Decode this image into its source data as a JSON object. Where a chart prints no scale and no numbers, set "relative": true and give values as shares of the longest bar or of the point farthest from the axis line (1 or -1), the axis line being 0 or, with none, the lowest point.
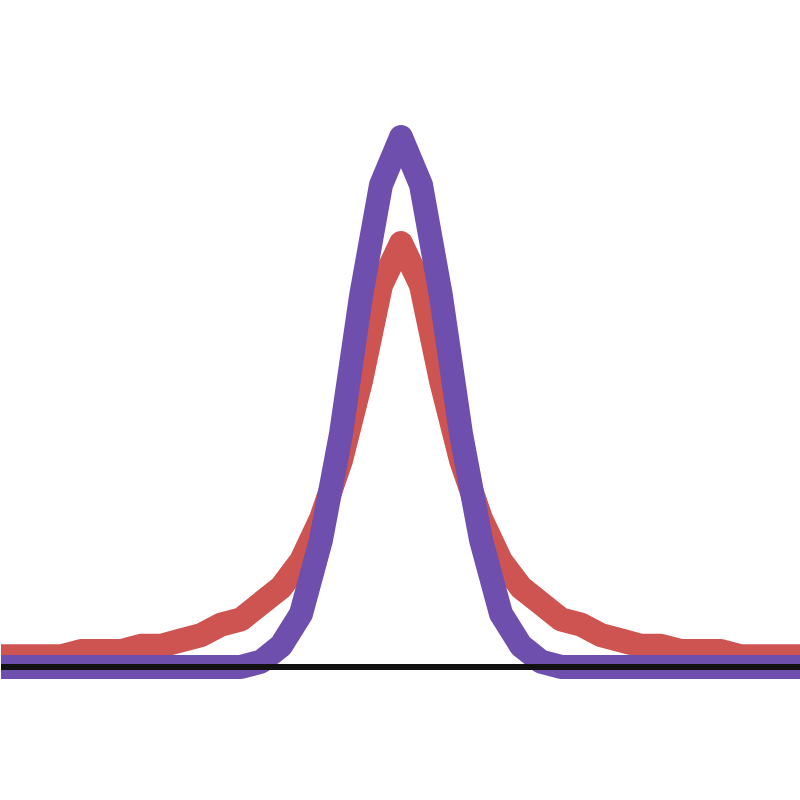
{
  "chart_data": {
    "type": "line",
    "relative": true,
    "categories": [
      null,
      null,
      null,
      null,
      null,
      null,
      null,
      null,
      null,
      null,
      null,
      null,
      null,
      null,
      null,
      null,
      null,
      null,
      null,
      null,
      null,
      null,
      null,
      null,
      null,
      null,
      null,
      null,
      null,
      null,
      null,
      null,
      null,
      null,
      null,
      null,
      null,
      null,
      null,
      null,
      null
    ],
    "series": [
      {
        "color": "#cd5450",
        "values": [
          0.02,
          0.02,
          0.02,
          0.02,
          0.03,
          0.03,
          0.03,
          0.04,
          0.04,
          0.05,
          0.06,
          0.08,
          0.09,
          0.12,
          0.15,
          0.2,
          0.28,
          0.39,
          0.54,
          0.72,
          0.8,
          0.72,
          0.54,
          0.39,
          0.28,
          0.2,
          0.15,
          0.12,
          0.09,
          0.08,
          0.06,
          0.05,
          0.04,
          0.04,
          0.03,
          0.03,
          0.03,
          0.02,
          0.02,
          0.02,
          0.02
        ]
      },
      {
        "color": "#6e4fae",
        "values": [
          0,
          0,
          0,
          0,
          0,
          0,
          0,
          0,
          0,
          0,
          0,
          0,
          0,
          0.01,
          0.04,
          0.1,
          0.24,
          0.44,
          0.7,
          0.91,
          1,
          0.91,
          0.7,
          0.44,
          0.24,
          0.1,
          0.04,
          0.01,
          0,
          0,
          0,
          0,
          0,
          0,
          0,
          0,
          0,
          0,
          0,
          0,
          0
        ]
      }
    ]
  }
}
